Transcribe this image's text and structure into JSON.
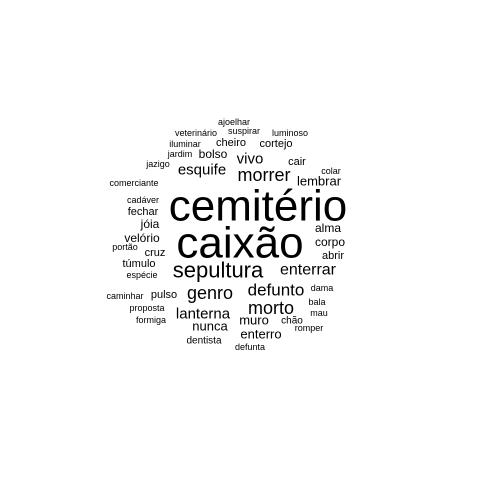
{
  "word_cloud": {
    "color": "#000000",
    "words": [
      {
        "text": "cemitério",
        "weight": 44
      },
      {
        "text": "caixão",
        "weight": 44
      },
      {
        "text": "sepultura",
        "weight": 22
      },
      {
        "text": "morrer",
        "weight": 18
      },
      {
        "text": "genro",
        "weight": 18
      },
      {
        "text": "morto",
        "weight": 18
      },
      {
        "text": "defunto",
        "weight": 17
      },
      {
        "text": "enterrar",
        "weight": 16
      },
      {
        "text": "esquife",
        "weight": 15
      },
      {
        "text": "vivo",
        "weight": 15
      },
      {
        "text": "lanterna",
        "weight": 15
      },
      {
        "text": "nunca",
        "weight": 13
      },
      {
        "text": "muro",
        "weight": 13
      },
      {
        "text": "lembrar",
        "weight": 13
      },
      {
        "text": "enterro",
        "weight": 13
      },
      {
        "text": "bolso",
        "weight": 12
      },
      {
        "text": "corpo",
        "weight": 12
      },
      {
        "text": "jóia",
        "weight": 12
      },
      {
        "text": "alma",
        "weight": 12
      },
      {
        "text": "velório",
        "weight": 12
      },
      {
        "text": "cheiro",
        "weight": 11
      },
      {
        "text": "cortejo",
        "weight": 11
      },
      {
        "text": "cair",
        "weight": 11
      },
      {
        "text": "cruz",
        "weight": 11
      },
      {
        "text": "abrir",
        "weight": 11
      },
      {
        "text": "pulso",
        "weight": 11
      },
      {
        "text": "fechar",
        "weight": 11
      },
      {
        "text": "túmulo",
        "weight": 11
      },
      {
        "text": "chão",
        "weight": 10
      },
      {
        "text": "dentista",
        "weight": 10
      },
      {
        "text": "defunta",
        "weight": 9
      },
      {
        "text": "ajoelhar",
        "weight": 9
      },
      {
        "text": "suspirar",
        "weight": 9
      },
      {
        "text": "veterinário",
        "weight": 9
      },
      {
        "text": "luminoso",
        "weight": 9
      },
      {
        "text": "iluminar",
        "weight": 9
      },
      {
        "text": "jardim",
        "weight": 9
      },
      {
        "text": "jazigo",
        "weight": 9
      },
      {
        "text": "colar",
        "weight": 9
      },
      {
        "text": "comerciante",
        "weight": 9
      },
      {
        "text": "cadáver",
        "weight": 9
      },
      {
        "text": "portão",
        "weight": 9
      },
      {
        "text": "espécie",
        "weight": 9
      },
      {
        "text": "caminhar",
        "weight": 9
      },
      {
        "text": "proposta",
        "weight": 9
      },
      {
        "text": "formiga",
        "weight": 9
      },
      {
        "text": "dama",
        "weight": 9
      },
      {
        "text": "bala",
        "weight": 9
      },
      {
        "text": "mau",
        "weight": 9
      },
      {
        "text": "romper",
        "weight": 9
      }
    ]
  }
}
